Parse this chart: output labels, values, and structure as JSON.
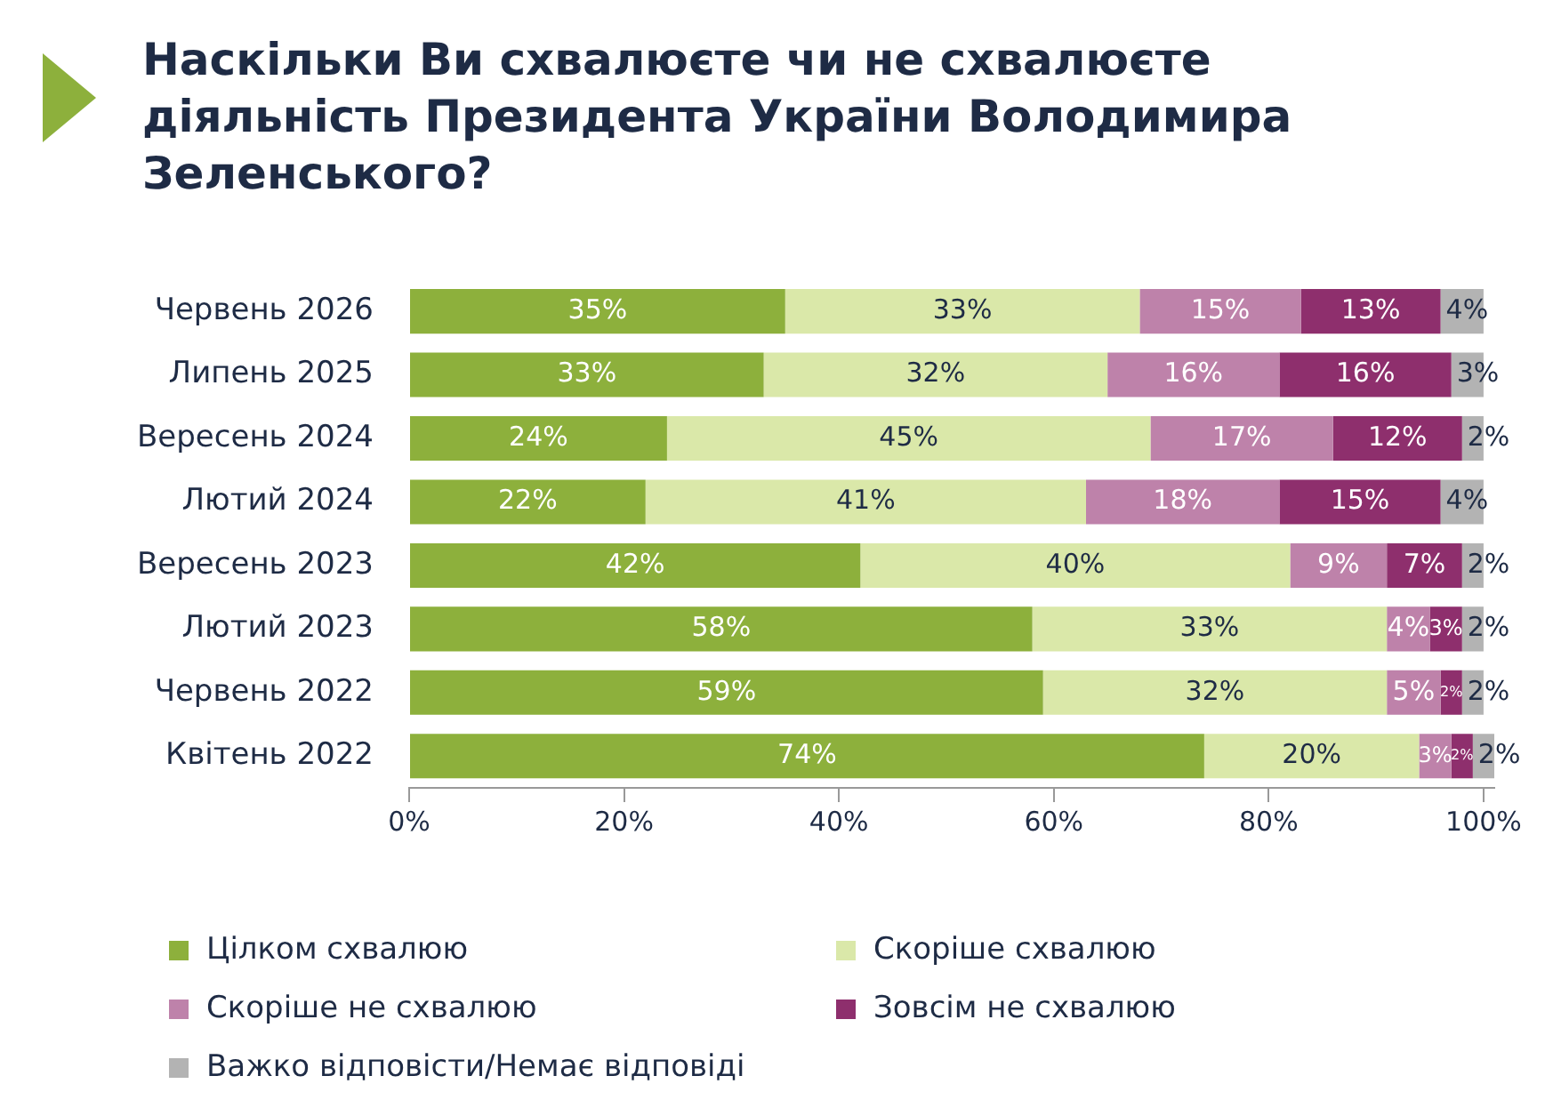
{
  "chart_data": {
    "type": "bar",
    "orientation": "horizontal",
    "stacked": true,
    "title": "Наскільки Ви схвалюєте чи не схвалюєте діяльність Президента України Володимира Зеленського?",
    "categories": [
      "Червень 2026",
      "Липень 2025",
      "Вересень 2024",
      "Лютий 2024",
      "Вересень 2023",
      "Лютий 2023",
      "Червень 2022",
      "Квітень 2022"
    ],
    "series": [
      {
        "name": "Цілком схвалюю",
        "color": "#8db03c",
        "values": [
          35,
          33,
          24,
          22,
          42,
          58,
          59,
          74
        ],
        "value_labels": [
          "35%",
          "33%",
          "24%",
          "22%",
          "42%",
          "58%",
          "59%",
          "74%"
        ]
      },
      {
        "name": "Скоріше схвалюю",
        "color": "#dae8a9",
        "values": [
          33,
          32,
          45,
          41,
          40,
          33,
          32,
          20
        ],
        "value_labels": [
          "33%",
          "32%",
          "45%",
          "41%",
          "40%",
          "33%",
          "32%",
          "20%"
        ]
      },
      {
        "name": "Скоріше не схвалюю",
        "color": "#be82aa",
        "values": [
          15,
          16,
          17,
          18,
          9,
          4,
          5,
          3
        ],
        "value_labels": [
          "15%",
          "16%",
          "17%",
          "18%",
          "9%",
          "4%",
          "5%",
          "3%"
        ]
      },
      {
        "name": "Зовсім не схвалюю",
        "color": "#8e2f6d",
        "values": [
          13,
          16,
          12,
          15,
          7,
          3,
          2,
          2
        ],
        "value_labels": [
          "13%",
          "16%",
          "12%",
          "15%",
          "7%",
          "3%",
          "2%",
          "2%"
        ]
      },
      {
        "name": "Важко відповісти/Немає відповіді",
        "color": "#b3b3b3",
        "values": [
          4,
          3,
          2,
          4,
          2,
          2,
          2,
          2
        ],
        "value_labels": [
          "4%",
          "3%",
          "2%",
          "4%",
          "2%",
          "2%",
          "2%",
          "2%"
        ]
      }
    ],
    "xlim": [
      0,
      101
    ],
    "xticks": [
      {
        "value": 0,
        "label": "0%"
      },
      {
        "value": 20,
        "label": "20%"
      },
      {
        "value": 40,
        "label": "40%"
      },
      {
        "value": 60,
        "label": "60%"
      },
      {
        "value": 80,
        "label": "80%"
      },
      {
        "value": 100,
        "label": "100%"
      }
    ],
    "grid": false,
    "legend": "bottom"
  }
}
